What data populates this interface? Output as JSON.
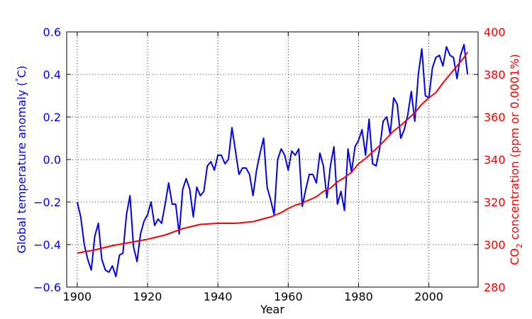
{
  "chart_data": {
    "type": "line",
    "xlabel": "Year",
    "ylabel_left": "Global temperature anomaly (°C)",
    "ylabel_left_parts": [
      "Global temperature anomaly (",
      "°",
      "C)"
    ],
    "ylabel_right": "CO2 concentration (ppm or 0.0001%)",
    "ylabel_right_parts": [
      "CO",
      "2",
      " concentration (ppm or 0.0001%)"
    ],
    "xlim": [
      1897,
      2014
    ],
    "ylim_left": [
      -0.6,
      0.6
    ],
    "ylim_right": [
      280,
      400
    ],
    "xticks": [
      "1900",
      "1920",
      "1940",
      "1960",
      "1980",
      "2000"
    ],
    "yticks_left": [
      "−0.6",
      "−0.4",
      "−0.2",
      "0.0",
      "0.2",
      "0.4",
      "0.6"
    ],
    "yticks_right": [
      "280",
      "300",
      "320",
      "340",
      "360",
      "380",
      "400"
    ],
    "grid": true,
    "colors": {
      "temperature": "#0000ff",
      "co2": "#ff0000"
    },
    "series": [
      {
        "axis": "left",
        "color": "#0000ff",
        "x": [
          1900,
          1901,
          1902,
          1903,
          1904,
          1905,
          1906,
          1907,
          1908,
          1909,
          1910,
          1911,
          1912,
          1913,
          1914,
          1915,
          1916,
          1917,
          1918,
          1919,
          1920,
          1921,
          1922,
          1923,
          1924,
          1925,
          1926,
          1927,
          1928,
          1929,
          1930,
          1931,
          1932,
          1933,
          1934,
          1935,
          1936,
          1937,
          1938,
          1939,
          1940,
          1941,
          1942,
          1943,
          1944,
          1945,
          1946,
          1947,
          1948,
          1949,
          1950,
          1951,
          1952,
          1953,
          1954,
          1955,
          1956,
          1957,
          1958,
          1959,
          1960,
          1961,
          1962,
          1963,
          1964,
          1965,
          1966,
          1967,
          1968,
          1969,
          1970,
          1971,
          1972,
          1973,
          1974,
          1975,
          1976,
          1977,
          1978,
          1979,
          1980,
          1981,
          1982,
          1983,
          1984,
          1985,
          1986,
          1987,
          1988,
          1989,
          1990,
          1991,
          1992,
          1993,
          1994,
          1995,
          1996,
          1997,
          1998,
          1999,
          2000,
          2001,
          2002,
          2003,
          2004,
          2005,
          2006,
          2007,
          2008,
          2009,
          2010,
          2011
        ],
        "values": [
          -0.2,
          -0.27,
          -0.4,
          -0.47,
          -0.52,
          -0.36,
          -0.3,
          -0.47,
          -0.52,
          -0.53,
          -0.5,
          -0.55,
          -0.45,
          -0.44,
          -0.26,
          -0.17,
          -0.41,
          -0.48,
          -0.35,
          -0.29,
          -0.26,
          -0.2,
          -0.31,
          -0.28,
          -0.3,
          -0.21,
          -0.11,
          -0.21,
          -0.21,
          -0.35,
          -0.14,
          -0.09,
          -0.14,
          -0.27,
          -0.13,
          -0.17,
          -0.15,
          -0.03,
          -0.01,
          -0.05,
          0.02,
          0.02,
          -0.02,
          0.0,
          0.15,
          0.04,
          -0.07,
          -0.04,
          -0.04,
          -0.07,
          -0.17,
          -0.05,
          0.03,
          0.1,
          -0.13,
          -0.19,
          -0.26,
          0.0,
          0.05,
          0.02,
          -0.05,
          0.04,
          0.02,
          0.05,
          -0.22,
          -0.14,
          -0.07,
          -0.07,
          -0.11,
          0.03,
          -0.03,
          -0.18,
          -0.03,
          0.06,
          -0.21,
          -0.15,
          -0.24,
          0.05,
          -0.06,
          0.06,
          0.09,
          0.14,
          0.02,
          0.19,
          -0.02,
          -0.03,
          0.05,
          0.18,
          0.2,
          0.12,
          0.29,
          0.26,
          0.1,
          0.14,
          0.21,
          0.32,
          0.18,
          0.4,
          0.52,
          0.3,
          0.29,
          0.43,
          0.48,
          0.49,
          0.44,
          0.53,
          0.49,
          0.48,
          0.38,
          0.49,
          0.54,
          0.4
        ]
      },
      {
        "axis": "right",
        "color": "#ff0000",
        "x": [
          1900,
          1905,
          1910,
          1915,
          1920,
          1925,
          1930,
          1935,
          1940,
          1945,
          1950,
          1955,
          1958,
          1960,
          1962,
          1964,
          1966,
          1968,
          1970,
          1972,
          1974,
          1976,
          1978,
          1980,
          1982,
          1984,
          1986,
          1988,
          1990,
          1992,
          1994,
          1996,
          1998,
          2000,
          2002,
          2004,
          2006,
          2008,
          2010,
          2011
        ],
        "values": [
          296,
          297.5,
          299.5,
          301,
          302.5,
          304.5,
          307.5,
          309.5,
          310,
          310,
          310.8,
          313,
          315,
          317,
          318.5,
          319.5,
          321,
          322.5,
          325,
          326.5,
          329.5,
          331.5,
          334,
          338,
          340.5,
          343.5,
          346.5,
          350,
          353.5,
          356,
          359,
          362,
          366,
          369,
          371.5,
          376,
          380,
          384,
          388,
          390.5
        ]
      }
    ]
  }
}
